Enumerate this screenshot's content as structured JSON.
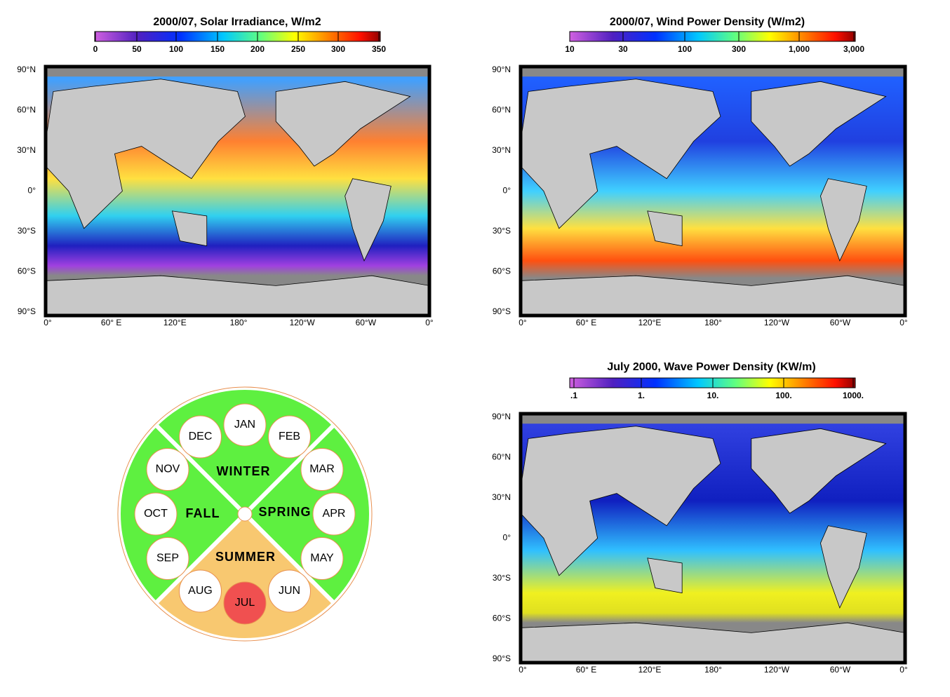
{
  "panels": [
    {
      "title": "2000/07, Solar Irradiance, W/m2",
      "colorbar_labels": [
        "0",
        "50",
        "100",
        "150",
        "200",
        "250",
        "300",
        "350"
      ],
      "lat_labels": [
        "90°N",
        "60°N",
        "30°N",
        "0°",
        "30°S",
        "60°S",
        "90°S"
      ],
      "lon_labels": [
        "0°",
        "60° E",
        "120°E",
        "180°",
        "120°W",
        "60°W",
        "0°"
      ]
    },
    {
      "title": "2000/07, Wind Power Density (W/m2)",
      "colorbar_labels": [
        "10",
        "30",
        "100",
        "300",
        "1,000",
        "3,000"
      ],
      "lat_labels": [
        "90°N",
        "60°N",
        "30°N",
        "0°",
        "30°S",
        "60°S",
        "90°S"
      ],
      "lon_labels": [
        "0°",
        "60° E",
        "120°E",
        "180°",
        "120°W",
        "60°W",
        "0°"
      ]
    },
    {
      "title": "July 2000, Wave Power Density (KW/m)",
      "colorbar_labels": [
        ".1",
        "1.",
        "10.",
        "100.",
        "1000."
      ],
      "lat_labels": [
        "90°N",
        "60°N",
        "30°N",
        "0°",
        "30°S",
        "60°S",
        "90°S"
      ],
      "lon_labels": [
        "0°",
        "60° E",
        "120°E",
        "180°",
        "120°W",
        "60°W",
        "0°"
      ]
    }
  ],
  "season_wheel": {
    "seasons": [
      "WINTER",
      "SPRING",
      "SUMMER",
      "FALL"
    ],
    "months": [
      "JAN",
      "FEB",
      "MAR",
      "APR",
      "MAY",
      "JUN",
      "JUL",
      "AUG",
      "SEP",
      "OCT",
      "NOV",
      "DEC"
    ],
    "selected": "JUL"
  }
}
